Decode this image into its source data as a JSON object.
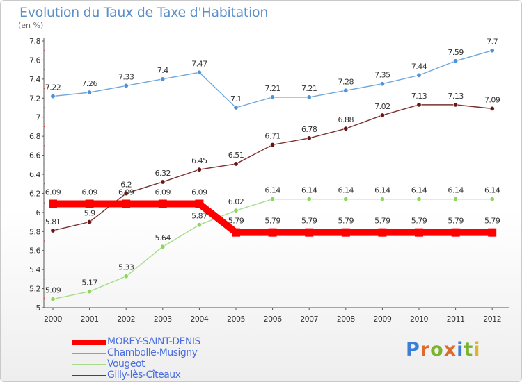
{
  "title": "Evolution du Taux de Taxe d'Habitation",
  "subtitle": "(en %)",
  "logo": {
    "text": "Proxiti",
    "colors": [
      "#3a7fd5",
      "#e06a2b",
      "#7ab32e",
      "#e06a2b",
      "#3a7fd5",
      "#7ab32e",
      "#e0b32b"
    ]
  },
  "chart_data": {
    "type": "line",
    "title": "Evolution du Taux de Taxe d'Habitation",
    "ylabel": "(en %)",
    "xlabel": "",
    "x": [
      "2000",
      "2001",
      "2002",
      "2003",
      "2004",
      "2005",
      "2006",
      "2007",
      "2008",
      "2009",
      "2010",
      "2011",
      "2012"
    ],
    "ylim": [
      5,
      7.8
    ],
    "yticks": [
      "5",
      "5.2",
      "5.4",
      "5.6",
      "5.8",
      "6",
      "6.2",
      "6.4",
      "6.6",
      "6.8",
      "7",
      "7.2",
      "7.4",
      "7.6",
      "7.8"
    ],
    "grid": false,
    "legend_position": "bottom-left",
    "series": [
      {
        "name": "MOREY-SAINT-DENIS",
        "color": "#ff0000",
        "highlight": true,
        "values": [
          6.09,
          6.09,
          6.09,
          6.09,
          6.09,
          5.79,
          5.79,
          5.79,
          5.79,
          5.79,
          5.79,
          5.79,
          5.79
        ],
        "labels": [
          "6.09",
          "6.09",
          "6.09",
          "6.09",
          "6.09",
          "5.79",
          "5.79",
          "5.79",
          "5.79",
          "5.79",
          "5.79",
          "5.79",
          "5.79"
        ]
      },
      {
        "name": "Chambolle-Musigny",
        "color": "#6fa7dc",
        "point_color": "#4f93d6",
        "values": [
          7.22,
          7.26,
          7.33,
          7.4,
          7.47,
          7.1,
          7.21,
          7.21,
          7.28,
          7.35,
          7.44,
          7.59,
          7.7
        ],
        "labels": [
          "7.22",
          "7.26",
          "7.33",
          "7.4",
          "7.47",
          "7.1",
          "7.21",
          "7.21",
          "7.28",
          "7.35",
          "7.44",
          "7.59",
          "7.7"
        ]
      },
      {
        "name": "Vougeot",
        "color": "#a6dc8a",
        "point_color": "#8fd45e",
        "values": [
          5.09,
          5.17,
          5.33,
          5.64,
          5.87,
          6.02,
          6.14,
          6.14,
          6.14,
          6.14,
          6.14,
          6.14,
          6.14
        ],
        "labels": [
          "5.09",
          "5.17",
          "5.33",
          "5.64",
          "5.87",
          "6.02",
          "6.14",
          "6.14",
          "6.14",
          "6.14",
          "6.14",
          "6.14",
          "6.14"
        ]
      },
      {
        "name": "Gilly-lès-Cîteaux",
        "color": "#7a3030",
        "point_color": "#6a1414",
        "values": [
          5.81,
          5.9,
          6.2,
          6.32,
          6.45,
          6.51,
          6.71,
          6.78,
          6.88,
          7.02,
          7.13,
          7.13,
          7.09
        ],
        "labels": [
          "5.81",
          "5.9",
          "6.2",
          "6.32",
          "6.45",
          "6.51",
          "6.71",
          "6.78",
          "6.88",
          "7.02",
          "7.13",
          "7.13",
          "7.09"
        ]
      }
    ]
  }
}
